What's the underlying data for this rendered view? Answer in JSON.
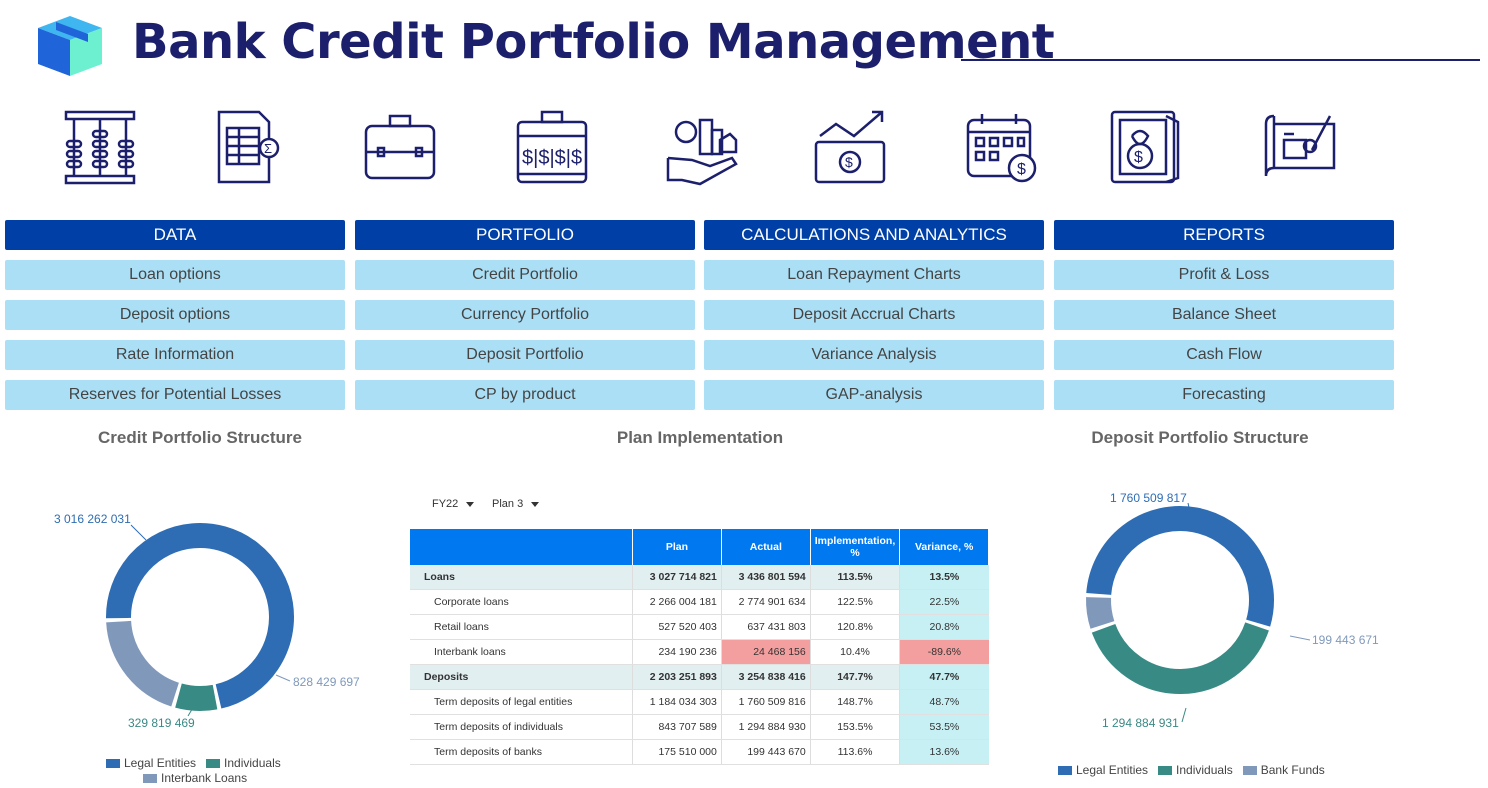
{
  "header": {
    "title": "Bank Credit Portfolio Management"
  },
  "icons": [
    "abacus-icon",
    "spreadsheet-sum-icon",
    "briefcase-icon",
    "money-case-icon",
    "investment-hand-icon",
    "growth-cash-icon",
    "calendar-dollar-icon",
    "safe-money-icon",
    "blueprint-plan-icon"
  ],
  "menu": {
    "columns": [
      {
        "heading": "DATA",
        "items": [
          "Loan options",
          "Deposit options",
          "Rate Information",
          "Reserves for Potential Losses"
        ]
      },
      {
        "heading": "PORTFOLIO",
        "items": [
          "Credit Portfolio",
          "Currency Portfolio",
          "Deposit Portfolio",
          "CP by product"
        ]
      },
      {
        "heading": "CALCULATIONS AND ANALYTICS",
        "items": [
          "Loan Repayment Charts",
          "Deposit Accrual Charts",
          "Variance Analysis",
          "GAP-analysis"
        ]
      },
      {
        "heading": "REPORTS",
        "items": [
          "Profit & Loss",
          "Balance Sheet",
          "Cash Flow",
          "Forecasting"
        ]
      }
    ]
  },
  "sections": {
    "credit_title": "Credit Portfolio Structure",
    "plan_title": "Plan Implementation",
    "deposit_title": "Deposit Portfolio Structure"
  },
  "filters": {
    "year": "FY22",
    "plan": "Plan 3"
  },
  "table": {
    "headers": [
      "",
      "Plan",
      "Actual",
      "Implementation, %",
      "Variance, %"
    ],
    "rows": [
      {
        "label": "Loans",
        "plan": "3 027 714 821",
        "actual": "3 436 801 594",
        "impl": "113.5%",
        "var": "13.5%"
      },
      {
        "label": "Corporate loans",
        "plan": "2 266 004 181",
        "actual": "2 774 901 634",
        "impl": "122.5%",
        "var": "22.5%"
      },
      {
        "label": "Retail loans",
        "plan": "527 520 403",
        "actual": "637 431 803",
        "impl": "120.8%",
        "var": "20.8%"
      },
      {
        "label": "Interbank loans",
        "plan": "234 190 236",
        "actual": "24 468 156",
        "impl": "10.4%",
        "var": "-89.6%"
      },
      {
        "label": "Deposits",
        "plan": "2 203 251 893",
        "actual": "3 254 838 416",
        "impl": "147.7%",
        "var": "47.7%"
      },
      {
        "label": "Term deposits of legal entities",
        "plan": "1 184 034 303",
        "actual": "1 760 509 816",
        "impl": "148.7%",
        "var": "48.7%"
      },
      {
        "label": "Term deposits of individuals",
        "plan": "843 707 589",
        "actual": "1 294 884 930",
        "impl": "153.5%",
        "var": "53.5%"
      },
      {
        "label": "Term deposits of banks",
        "plan": "175 510 000",
        "actual": "199 443 670",
        "impl": "113.6%",
        "var": "13.6%"
      }
    ]
  },
  "chart_data": [
    {
      "type": "pie",
      "title": "Credit Portfolio Structure",
      "categories": [
        "Legal Entities",
        "Individuals",
        "Interbank Loans"
      ],
      "values": [
        3016262031,
        329819469,
        828429697
      ],
      "value_labels": [
        "3 016 262 031",
        "329 819 469",
        "828 429 697"
      ],
      "colors": [
        "#2e6db4",
        "#388a85",
        "#8099bb"
      ],
      "legend": "bottom"
    },
    {
      "type": "pie",
      "title": "Deposit Portfolio Structure",
      "categories": [
        "Legal Entities",
        "Individuals",
        "Bank Funds"
      ],
      "values": [
        1760509817,
        1294884931,
        199443671
      ],
      "value_labels": [
        "1 760 509 817",
        "1 294 884 931",
        "199 443 671"
      ],
      "colors": [
        "#2e6db4",
        "#388a85",
        "#8099bb"
      ],
      "legend": "bottom"
    }
  ]
}
